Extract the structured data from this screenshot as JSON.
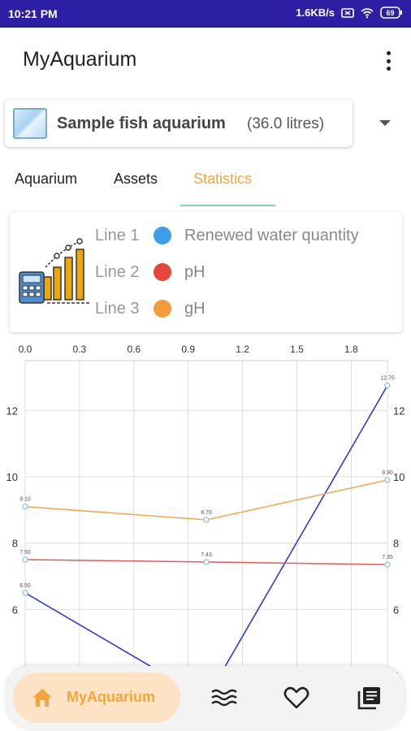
{
  "status_bar": {
    "time": "10:21 PM",
    "network_speed": "1.6KB/s",
    "battery": "69",
    "background": "#2d1fa3"
  },
  "app_bar": {
    "title": "MyAquarium",
    "menu_icon": "more-vert-icon"
  },
  "aquarium_selector": {
    "name": "Sample fish aquarium",
    "volume": "(36.0 litres)",
    "icon": "aquarium-thumbnail-icon",
    "caret_icon": "dropdown-arrow-icon"
  },
  "tabs": [
    {
      "label": "Aquarium",
      "active": false
    },
    {
      "label": "Assets",
      "active": false
    },
    {
      "label": "Statistics",
      "active": true
    }
  ],
  "legend": {
    "icon": "statistics-chart-icon",
    "rows": [
      {
        "line": "Line 1",
        "series": "Renewed water quantity",
        "color": "#3a9fe6"
      },
      {
        "line": "Line 2",
        "series": "pH",
        "color": "#e4473a"
      },
      {
        "line": "Line 3",
        "series": "gH",
        "color": "#f39a3c"
      }
    ]
  },
  "chart_data": {
    "type": "line",
    "x_ticks": [
      "0.0",
      "0.3",
      "0.6",
      "0.9",
      "1.2",
      "1.5",
      "1.8"
    ],
    "y_ticks": [
      "4",
      "6",
      "8",
      "10",
      "12"
    ],
    "xlim": [
      0,
      2
    ],
    "ylim": [
      4,
      13.5
    ],
    "y_axis_left_and_right": true,
    "grid": true,
    "series": [
      {
        "color": "#2b2bdc",
        "points": [
          [
            0,
            6.5
          ],
          [
            1,
            3.3
          ],
          [
            2,
            12.75
          ]
        ],
        "labels": [
          "6.50",
          "",
          "12.75"
        ]
      },
      {
        "color": "#e55a5a",
        "points": [
          [
            0,
            7.5
          ],
          [
            1,
            7.43
          ],
          [
            2,
            7.35
          ]
        ],
        "labels": [
          "7.50",
          "7.43",
          "7.35"
        ]
      },
      {
        "color": "#f2a64b",
        "points": [
          [
            0,
            9.1
          ],
          [
            1,
            8.7
          ],
          [
            2,
            9.9
          ]
        ],
        "labels": [
          "9.10",
          "8.70",
          "9.90"
        ]
      }
    ]
  },
  "bottom_nav": {
    "items": [
      {
        "label": "MyAquarium",
        "icon": "home-icon",
        "active": true
      },
      {
        "label": "",
        "icon": "water-waves-icon",
        "active": false
      },
      {
        "label": "",
        "icon": "heart-icon",
        "active": false
      },
      {
        "label": "",
        "icon": "library-books-icon",
        "active": false
      }
    ],
    "accent": "#f4a53c"
  }
}
